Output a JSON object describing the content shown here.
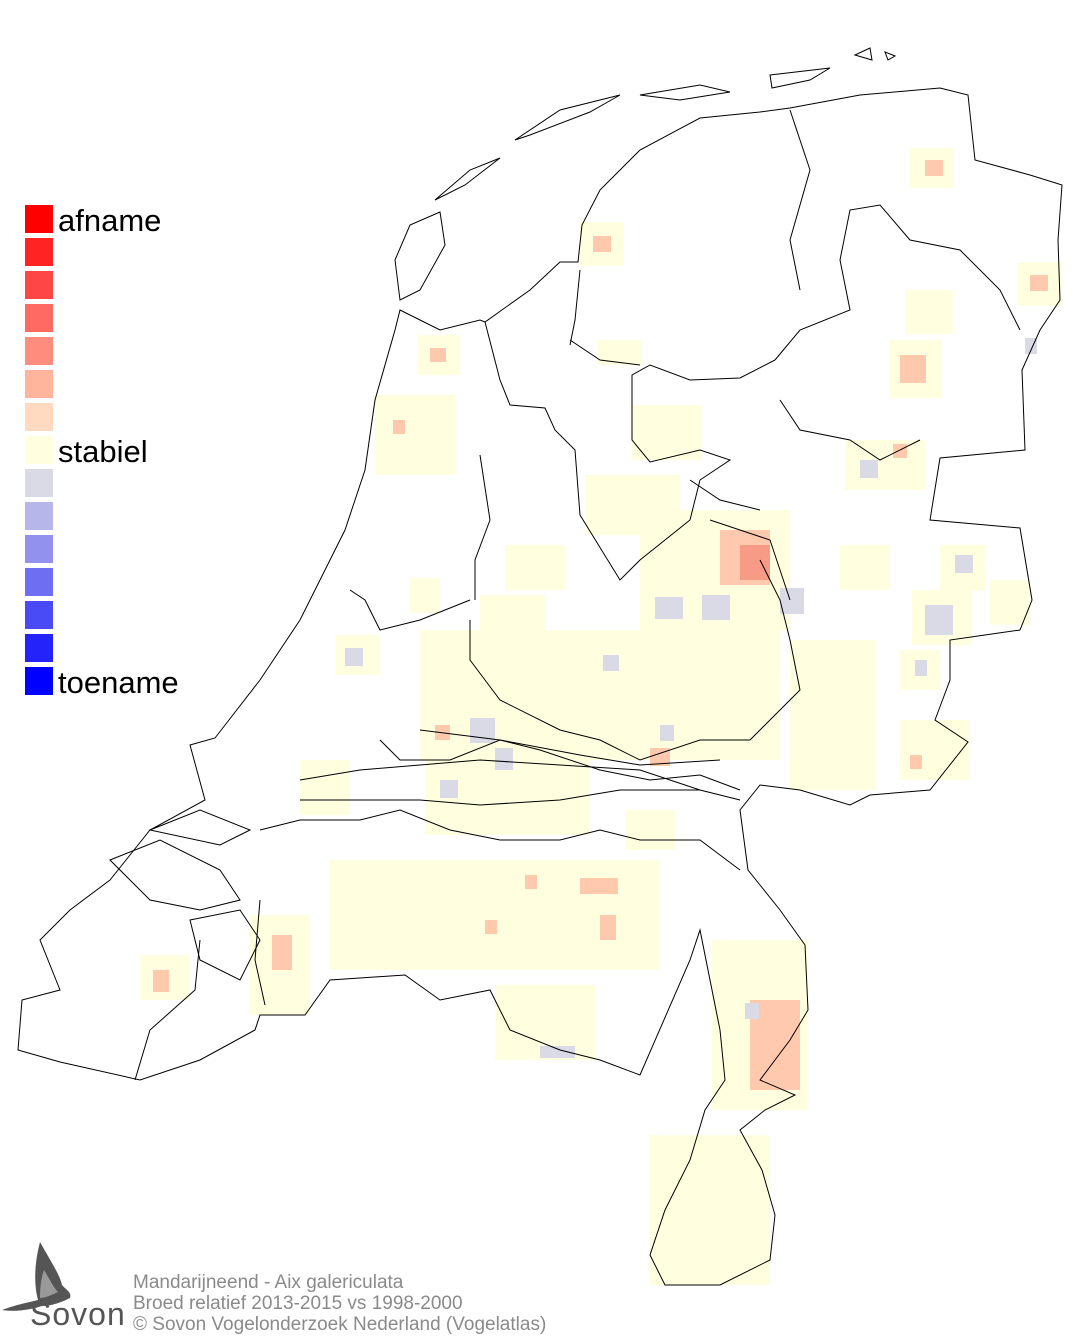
{
  "legend": {
    "top_label": "afname",
    "middle_label": "stabiel",
    "bottom_label": "toename",
    "colors": [
      "#ff0000",
      "#ff2323",
      "#ff4646",
      "#ff6a62",
      "#ff8c7c",
      "#ffb49c",
      "#ffd9c0",
      "#ffffe0",
      "#dadae6",
      "#b6b6ea",
      "#9292ee",
      "#6e6ef2",
      "#4a4af6",
      "#2424fa",
      "#0000ff"
    ]
  },
  "footer": {
    "line1": "Mandarijneend - Aix galericulata",
    "line2": "Broed relatief 2013-2015 vs 1998-2000",
    "line3": "© Sovon Vogelonderzoek Nederland (Vogelatlas)"
  },
  "logo": {
    "text": "Sovon"
  }
}
